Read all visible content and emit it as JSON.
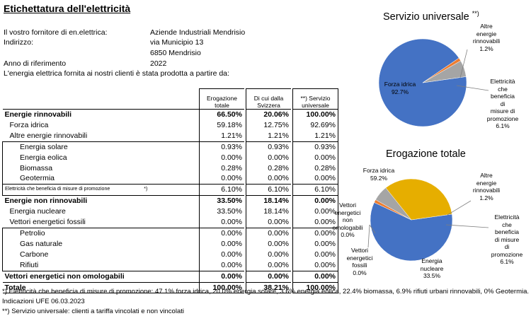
{
  "title": "Etichettatura dell'elettricità",
  "supplier": {
    "label": "Il vostro fornitore di en.elettrica:",
    "name": "Aziende Industriali Mendrisio",
    "address_label": "Indirizzo:",
    "address_line1": "via Municipio 13",
    "address_line2": "6850 Mendrisio",
    "year_label": "Anno di riferimento",
    "year": "2022",
    "intro": "L'energia elettrica fornita ai nostri clienti è stata prodotta a partire da:"
  },
  "table": {
    "headers": {
      "total_l1": "Erogazione",
      "total_l2": "totale",
      "swiss_l1": "Di cui dalla",
      "swiss_l2": "Svizzera",
      "univ_l1": "**) Servizio",
      "univ_l2": "universale"
    },
    "rows": [
      {
        "label": "Energie rinnovabili",
        "total": "66.50%",
        "swiss": "20.06%",
        "univ": "100.00%"
      },
      {
        "label": "Forza idrica",
        "total": "59.18%",
        "swiss": "12.75%",
        "univ": "92.69%"
      },
      {
        "label": "Altre energie rinnovabili",
        "total": "1.21%",
        "swiss": "1.21%",
        "univ": "1.21%"
      },
      {
        "label": "Energia solare",
        "total": "0.93%",
        "swiss": "0.93%",
        "univ": "0.93%"
      },
      {
        "label": "Energia eolica",
        "total": "0.00%",
        "swiss": "0.00%",
        "univ": "0.00%"
      },
      {
        "label": "Biomassa",
        "total": "0.28%",
        "swiss": "0.28%",
        "univ": "0.28%"
      },
      {
        "label": "Geotermia",
        "total": "0.00%",
        "swiss": "0.00%",
        "univ": "0.00%"
      },
      {
        "label": "Elettricità che beneficia di misure di promozione",
        "mark": "*)",
        "total": "6.10%",
        "swiss": "6.10%",
        "univ": "6.10%"
      },
      {
        "label": "Energie non rinnovabili",
        "total": "33.50%",
        "swiss": "18.14%",
        "univ": "0.00%"
      },
      {
        "label": "Energia nucleare",
        "total": "33.50%",
        "swiss": "18.14%",
        "univ": "0.00%"
      },
      {
        "label": "Vettori energetici fossili",
        "total": "0.00%",
        "swiss": "0.00%",
        "univ": "0.00%"
      },
      {
        "label": "Petrolio",
        "total": "0.00%",
        "swiss": "0.00%",
        "univ": "0.00%"
      },
      {
        "label": "Gas naturale",
        "total": "0.00%",
        "swiss": "0.00%",
        "univ": "0.00%"
      },
      {
        "label": "Carbone",
        "total": "0.00%",
        "swiss": "0.00%",
        "univ": "0.00%"
      },
      {
        "label": "Rifiuti",
        "total": "0.00%",
        "swiss": "0.00%",
        "univ": "0.00%"
      },
      {
        "label": "Vettori energetici non omologabili",
        "total": "0.00%",
        "swiss": "0.00%",
        "univ": "0.00%"
      },
      {
        "label": "Totale",
        "total": "100.00%",
        "swiss": "38.21%",
        "univ": "100.00%"
      }
    ]
  },
  "footer": {
    "note1": "*) Elettricità che beneficia di misure di promozione: 47.1% forza idrica, 20.0% energia solare,  3.6% energia eolica, 22.4% biomassa, 6.9% rifiuti urbani rinnovabili, 0% Geotermia.",
    "note2": "Indicazioni UFE 06.03.2023",
    "note3": "**) Servizio universale: clienti a tariffa vincolati e non vincolati"
  },
  "chart_data": [
    {
      "type": "pie",
      "title": "Servizio universale",
      "title_mark": "**)",
      "slices": [
        {
          "name": "Forza idrica",
          "value": 92.7,
          "label": "92.7%",
          "color": "#4472C4"
        },
        {
          "name": "Altre energie rinnovabili",
          "value": 1.2,
          "label": "1.2%",
          "color": "#ED7D31"
        },
        {
          "name": "Elettricità che beneficia di misure di promozione",
          "value": 6.1,
          "label": "6.1%",
          "color": "#A5A5A5"
        }
      ],
      "labels": {
        "forza": [
          "Forza idrica",
          "92.7%"
        ],
        "altre": [
          "Altre",
          "energie",
          "rinnovabili",
          "1.2%"
        ],
        "elett": [
          "Elettricità",
          "che",
          "beneficia",
          "di",
          "misure di",
          "promozione",
          "6.1%"
        ]
      }
    },
    {
      "type": "pie",
      "title": "Erogazione totale",
      "slices": [
        {
          "name": "Forza idrica",
          "value": 59.2,
          "label": "59.2%",
          "color": "#4472C4"
        },
        {
          "name": "Altre energie rinnovabili",
          "value": 1.2,
          "label": "1.2%",
          "color": "#ED7D31"
        },
        {
          "name": "Elettricità che beneficia di misure di promozione",
          "value": 6.1,
          "label": "6.1%",
          "color": "#A5A5A5"
        },
        {
          "name": "Energia nucleare",
          "value": 33.5,
          "label": "33.5%",
          "color": "#E6AE00"
        },
        {
          "name": "Vettori energetici fossili",
          "value": 0.0,
          "label": "0.0%",
          "color": "#5B9BD5"
        },
        {
          "name": "Vettori energetici non omologabili",
          "value": 0.0,
          "label": "0.0%",
          "color": "#70AD47"
        }
      ],
      "labels": {
        "forza": [
          "Forza idrica",
          "59.2%"
        ],
        "altre": [
          "Altre",
          "energie",
          "rinnovabili",
          "1.2%"
        ],
        "elett": [
          "Elettricità",
          "che",
          "beneficia",
          "di misure",
          "di",
          "promozione",
          "6.1%"
        ],
        "nucl": [
          "Energia",
          "nucleare",
          "33.5%"
        ],
        "fossili": [
          "Vettori",
          "energetici",
          "fossili",
          "0.0%"
        ],
        "nonomo": [
          "Vettori",
          "energetici",
          "non",
          "omologabili",
          "0.0%"
        ]
      }
    }
  ]
}
